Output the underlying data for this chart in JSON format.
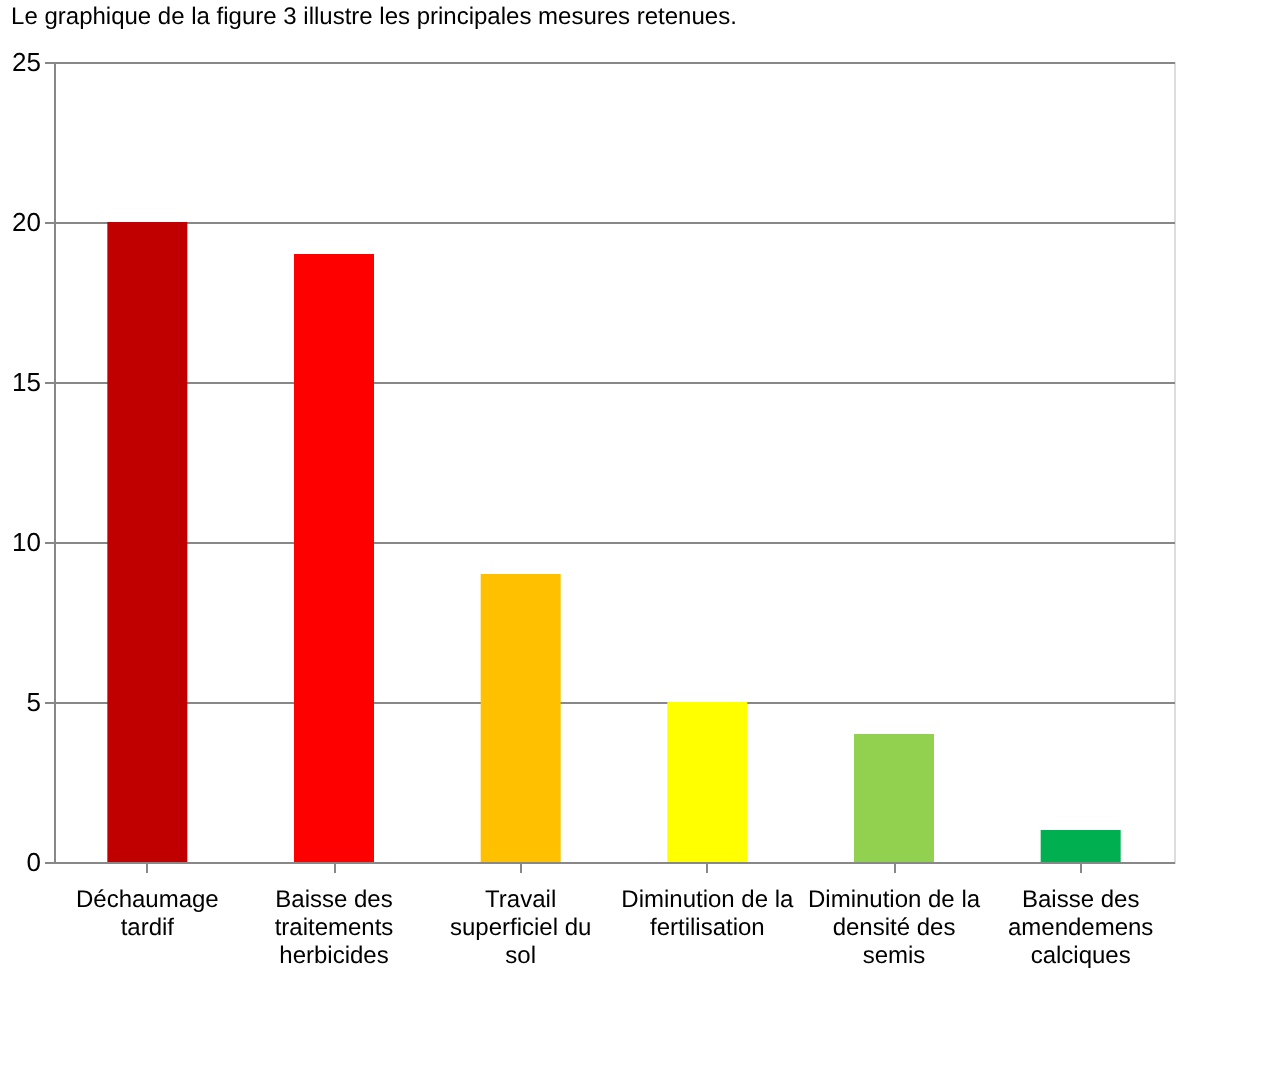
{
  "chart_data": {
    "type": "bar",
    "title": "Le graphique de la figure 3 illustre les principales mesures retenues.",
    "categories": [
      "Déchaumage tardif",
      "Baisse des traitements herbicides",
      "Travail superficiel du sol",
      "Diminution de la fertilisation",
      "Diminution de la densité des semis",
      "Baisse des amendemens calciques"
    ],
    "values": [
      20,
      19,
      9,
      5,
      4,
      1
    ],
    "colors": [
      "#c00000",
      "#ff0000",
      "#ffc000",
      "#ffff00",
      "#92d050",
      "#00b050"
    ],
    "ylim": [
      0,
      25
    ],
    "yticks": [
      0,
      5,
      10,
      15,
      20,
      25
    ],
    "grid": "y"
  }
}
